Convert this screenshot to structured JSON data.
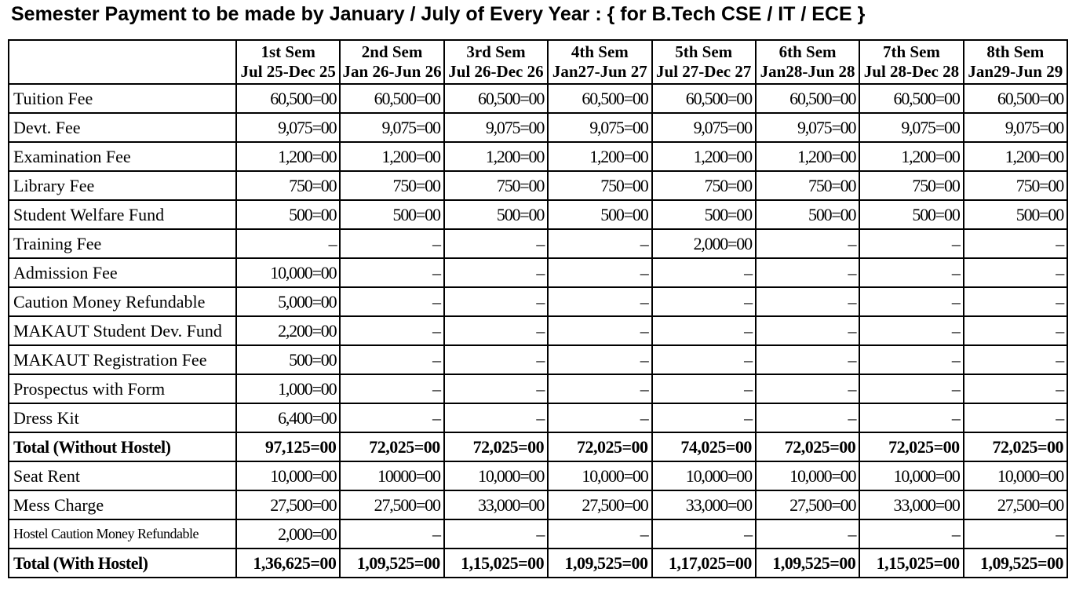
{
  "title": "Semester Payment to be made by January / July of Every Year : { for B.Tech CSE / IT / ECE }",
  "table": {
    "columns": [
      {
        "sem": "1st Sem",
        "period": "Jul 25-Dec 25"
      },
      {
        "sem": "2nd Sem",
        "period": "Jan 26-Jun 26"
      },
      {
        "sem": "3rd Sem",
        "period": "Jul 26-Dec 26"
      },
      {
        "sem": "4th Sem",
        "period": "Jan27-Jun 27"
      },
      {
        "sem": "5th Sem",
        "period": "Jul 27-Dec 27"
      },
      {
        "sem": "6th Sem",
        "period": "Jan28-Jun 28"
      },
      {
        "sem": "7th Sem",
        "period": "Jul 28-Dec 28"
      },
      {
        "sem": "8th Sem",
        "period": "Jan29-Jun 29"
      }
    ],
    "rows": [
      {
        "label": "Tuition Fee",
        "cells": [
          "60,500=00",
          "60,500=00",
          "60,500=00",
          "60,500=00",
          "60,500=00",
          "60,500=00",
          "60,500=00",
          "60,500=00"
        ]
      },
      {
        "label": "Devt. Fee",
        "cells": [
          "9,075=00",
          "9,075=00",
          "9,075=00",
          "9,075=00",
          "9,075=00",
          "9,075=00",
          "9,075=00",
          "9,075=00"
        ]
      },
      {
        "label": "Examination Fee",
        "cells": [
          "1,200=00",
          "1,200=00",
          "1,200=00",
          "1,200=00",
          "1,200=00",
          "1,200=00",
          "1,200=00",
          "1,200=00"
        ]
      },
      {
        "label": "Library Fee",
        "cells": [
          "750=00",
          "750=00",
          "750=00",
          "750=00",
          "750=00",
          "750=00",
          "750=00",
          "750=00"
        ]
      },
      {
        "label": "Student Welfare Fund",
        "cells": [
          "500=00",
          "500=00",
          "500=00",
          "500=00",
          "500=00",
          "500=00",
          "500=00",
          "500=00"
        ]
      },
      {
        "label": "Training Fee",
        "cells": [
          "–",
          "–",
          "–",
          "–",
          "2,000=00",
          "–",
          "–",
          "–"
        ]
      },
      {
        "label": "Admission Fee",
        "cells": [
          "10,000=00",
          "–",
          "–",
          "–",
          "–",
          "–",
          "–",
          "–"
        ]
      },
      {
        "label": "Caution Money Refundable",
        "cells": [
          "5,000=00",
          "–",
          "–",
          "–",
          "–",
          "–",
          "–",
          "–"
        ]
      },
      {
        "label": "MAKAUT Student Dev. Fund",
        "cells": [
          "2,200=00",
          "–",
          "–",
          "–",
          "–",
          "–",
          "–",
          "–"
        ]
      },
      {
        "label": "MAKAUT Registration Fee",
        "cells": [
          "500=00",
          "–",
          "–",
          "–",
          "–",
          "–",
          "–",
          "–"
        ]
      },
      {
        "label": "Prospectus with Form",
        "cells": [
          "1,000=00",
          "–",
          "–",
          "–",
          "–",
          "–",
          "–",
          "–"
        ]
      },
      {
        "label": "Dress Kit",
        "cells": [
          "6,400=00",
          "–",
          "–",
          "–",
          "–",
          "–",
          "–",
          "–"
        ]
      },
      {
        "label": "Total (Without Hostel)",
        "bold": true,
        "cells": [
          "97,125=00",
          "72,025=00",
          "72,025=00",
          "72,025=00",
          "74,025=00",
          "72,025=00",
          "72,025=00",
          "72,025=00"
        ]
      },
      {
        "label": "Seat Rent",
        "cells": [
          "10,000=00",
          "10000=00",
          "10,000=00",
          "10,000=00",
          "10,000=00",
          "10,000=00",
          "10,000=00",
          "10,000=00"
        ]
      },
      {
        "label": "Mess Charge",
        "cells": [
          "27,500=00",
          "27,500=00",
          "33,000=00",
          "27,500=00",
          "33,000=00",
          "27,500=00",
          "33,000=00",
          "27,500=00"
        ]
      },
      {
        "label": "Hostel Caution Money Refundable",
        "label_size": "small",
        "cells": [
          "2,000=00",
          "–",
          "–",
          "–",
          "–",
          "–",
          "–",
          "–"
        ]
      },
      {
        "label": "Total (With Hostel)",
        "bold": true,
        "cells": [
          "1,36,625=00",
          "1,09,525=00",
          "1,15,025=00",
          "1,09,525=00",
          "1,17,025=00",
          "1,09,525=00",
          "1,15,025=00",
          "1,09,525=00"
        ]
      }
    ]
  }
}
